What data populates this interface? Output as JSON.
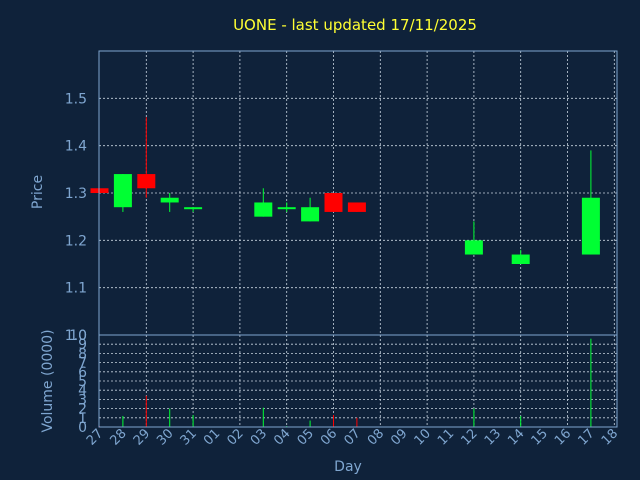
{
  "chart_data": {
    "type": "candlestick",
    "title": "UONE - last updated 17/11/2025",
    "xlabel": "Day",
    "price_panel": {
      "ylabel": "Price",
      "ylim": [
        1.0,
        1.6
      ],
      "yticks": [
        "1.0",
        "1.1",
        "1.2",
        "1.3",
        "1.4",
        "1.5"
      ],
      "grid": true
    },
    "volume_panel": {
      "ylabel": "Volume (0000)",
      "ylim": [
        0,
        10
      ],
      "yticks": [
        "0",
        "1",
        "2",
        "3",
        "4",
        "5",
        "6",
        "7",
        "8",
        "9",
        "10"
      ],
      "grid": true
    },
    "x_ticks": [
      "27",
      "28",
      "29",
      "30",
      "31",
      "01",
      "02",
      "03",
      "04",
      "05",
      "06",
      "07",
      "08",
      "09",
      "10",
      "11",
      "12",
      "13",
      "14",
      "15",
      "16",
      "17",
      "18"
    ],
    "x_grid_ticks": [
      "29",
      "31",
      "02",
      "04",
      "06",
      "08",
      "10",
      "12",
      "14",
      "16",
      "18"
    ],
    "colors": {
      "up": "#00ff33",
      "down": "#ff0000",
      "background": "#0f223a",
      "text": "#7fa6d0",
      "title": "#ffff33"
    },
    "candles": [
      {
        "day": "27",
        "open": 1.31,
        "close": 1.3,
        "high": 1.31,
        "low": 1.3,
        "volume": 0.1
      },
      {
        "day": "28",
        "open": 1.27,
        "close": 1.34,
        "high": 1.34,
        "low": 1.26,
        "volume": 1.2
      },
      {
        "day": "29",
        "open": 1.34,
        "close": 1.31,
        "high": 1.46,
        "low": 1.29,
        "volume": 3.4
      },
      {
        "day": "30",
        "open": 1.28,
        "close": 1.29,
        "high": 1.3,
        "low": 1.26,
        "volume": 2.0
      },
      {
        "day": "31",
        "open": 1.27,
        "close": 1.27,
        "high": 1.27,
        "low": 1.26,
        "volume": 1.3
      },
      {
        "day": "03",
        "open": 1.25,
        "close": 1.28,
        "high": 1.31,
        "low": 1.25,
        "volume": 2.1
      },
      {
        "day": "04",
        "open": 1.27,
        "close": 1.27,
        "high": 1.28,
        "low": 1.26,
        "volume": 0.1
      },
      {
        "day": "05",
        "open": 1.24,
        "close": 1.27,
        "high": 1.29,
        "low": 1.24,
        "volume": 0.7
      },
      {
        "day": "06",
        "open": 1.3,
        "close": 1.26,
        "high": 1.3,
        "low": 1.26,
        "volume": 1.3
      },
      {
        "day": "07",
        "open": 1.28,
        "close": 1.26,
        "high": 1.28,
        "low": 1.26,
        "volume": 1.0
      },
      {
        "day": "12",
        "open": 1.17,
        "close": 1.2,
        "high": 1.24,
        "low": 1.17,
        "volume": 2.0
      },
      {
        "day": "14",
        "open": 1.15,
        "close": 1.17,
        "high": 1.18,
        "low": 1.15,
        "volume": 1.2
      },
      {
        "day": "17",
        "open": 1.17,
        "close": 1.29,
        "high": 1.39,
        "low": 1.17,
        "volume": 9.6
      }
    ]
  }
}
